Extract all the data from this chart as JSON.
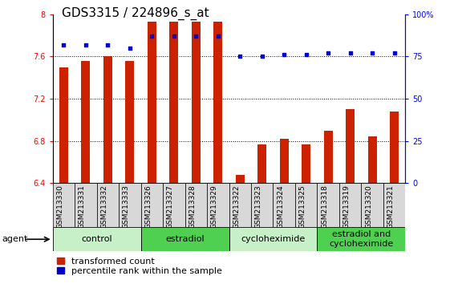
{
  "title": "GDS3315 / 224896_s_at",
  "samples": [
    "GSM213330",
    "GSM213331",
    "GSM213332",
    "GSM213333",
    "GSM213326",
    "GSM213327",
    "GSM213328",
    "GSM213329",
    "GSM213322",
    "GSM213323",
    "GSM213324",
    "GSM213325",
    "GSM213318",
    "GSM213319",
    "GSM213320",
    "GSM213321"
  ],
  "bar_values": [
    7.5,
    7.56,
    7.6,
    7.56,
    7.93,
    7.93,
    7.93,
    7.93,
    6.48,
    6.77,
    6.82,
    6.77,
    6.9,
    7.1,
    6.84,
    7.08
  ],
  "percentile_values": [
    82,
    82,
    82,
    80,
    87,
    87,
    87,
    87,
    75,
    75,
    76,
    76,
    77,
    77,
    77,
    77
  ],
  "bar_color": "#cc2200",
  "dot_color": "#0000cc",
  "ylim_left": [
    6.4,
    8.0
  ],
  "ylim_right": [
    0,
    100
  ],
  "yticks_left": [
    6.4,
    6.8,
    7.2,
    7.6,
    8.0
  ],
  "yticks_right": [
    0,
    25,
    50,
    75,
    100
  ],
  "ytick_labels_left": [
    "6.4",
    "6.8",
    "7.2",
    "7.6",
    "8"
  ],
  "ytick_labels_right": [
    "0",
    "25",
    "50",
    "75",
    "100%"
  ],
  "groups": [
    {
      "label": "control",
      "start": 0,
      "end": 3,
      "color": "#c8f0c8"
    },
    {
      "label": "estradiol",
      "start": 4,
      "end": 7,
      "color": "#50d050"
    },
    {
      "label": "cycloheximide",
      "start": 8,
      "end": 11,
      "color": "#c8f0c8"
    },
    {
      "label": "estradiol and\ncycloheximide",
      "start": 12,
      "end": 15,
      "color": "#50d050"
    }
  ],
  "agent_label": "agent",
  "legend_bar_label": "transformed count",
  "legend_dot_label": "percentile rank within the sample",
  "bar_width": 0.4,
  "dotted_lines": [
    6.8,
    7.2,
    7.6
  ],
  "tick_label_fontsize": 7,
  "title_fontsize": 11,
  "group_label_fontsize": 8,
  "legend_fontsize": 8,
  "bar_bottom": 6.4
}
